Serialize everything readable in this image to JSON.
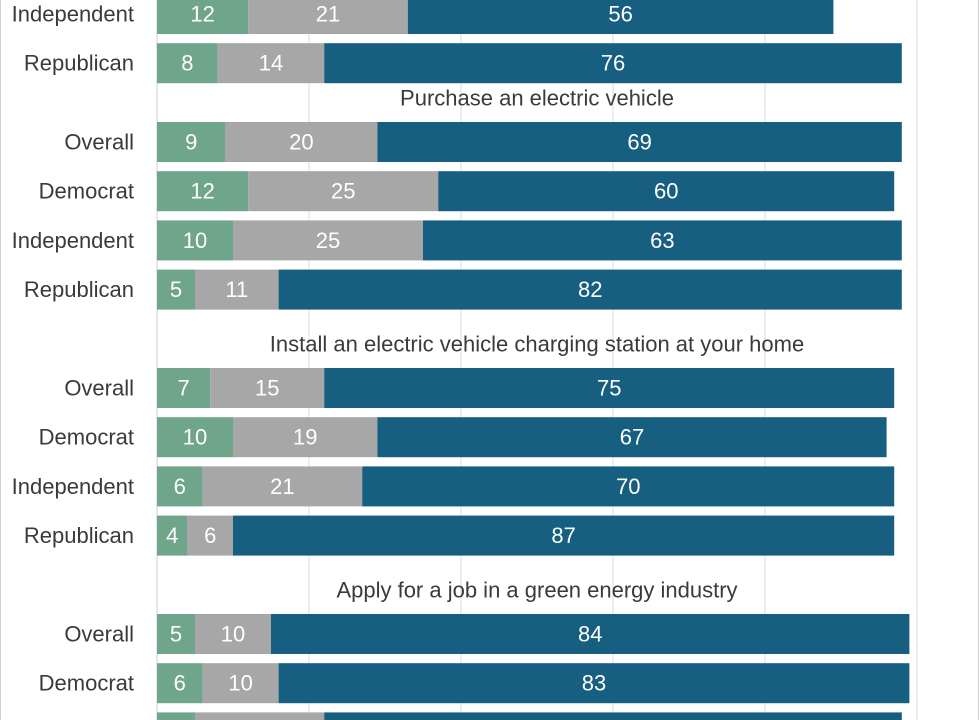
{
  "chart_data": {
    "type": "bar",
    "orientation": "horizontal",
    "stacked": true,
    "axis_range": [
      0,
      100
    ],
    "grid": true,
    "colors": [
      "#6fa58a",
      "#a7a7a7",
      "#175f80"
    ],
    "groups": [
      {
        "title": "",
        "rows": [
          {
            "label": "Independent",
            "values": [
              12,
              21,
              56
            ]
          },
          {
            "label": "Republican",
            "values": [
              8,
              14,
              76
            ]
          }
        ]
      },
      {
        "title": "Purchase an electric vehicle",
        "rows": [
          {
            "label": "Overall",
            "values": [
              9,
              20,
              69
            ]
          },
          {
            "label": "Democrat",
            "values": [
              12,
              25,
              60
            ]
          },
          {
            "label": "Independent",
            "values": [
              10,
              25,
              63
            ]
          },
          {
            "label": "Republican",
            "values": [
              5,
              11,
              82
            ]
          }
        ]
      },
      {
        "title": "Install an electric vehicle charging station at your home",
        "rows": [
          {
            "label": "Overall",
            "values": [
              7,
              15,
              75
            ]
          },
          {
            "label": "Democrat",
            "values": [
              10,
              19,
              67
            ]
          },
          {
            "label": "Independent",
            "values": [
              6,
              21,
              70
            ]
          },
          {
            "label": "Republican",
            "values": [
              4,
              6,
              87
            ]
          }
        ]
      },
      {
        "title": "Apply for a job in a green energy industry",
        "rows": [
          {
            "label": "Overall",
            "values": [
              5,
              10,
              84
            ]
          },
          {
            "label": "Democrat",
            "values": [
              6,
              10,
              83
            ]
          },
          {
            "label": "",
            "values": [
              5,
              17,
              76
            ]
          }
        ]
      }
    ]
  }
}
